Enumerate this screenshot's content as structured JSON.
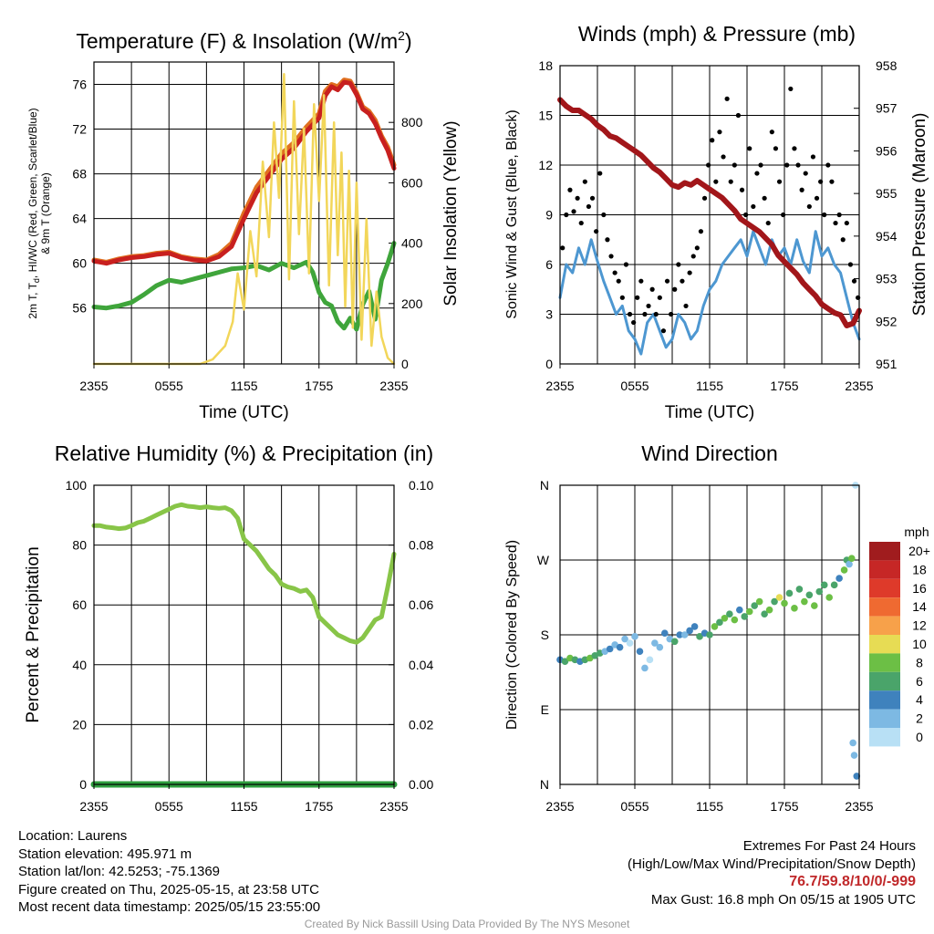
{
  "colors": {
    "temperature": "#c8201f",
    "dewpoint": "#3fa53b",
    "heat_index": "#e07020",
    "solar": "#f2d65a",
    "sonic_wind": "#4d97d1",
    "gust": "#000000",
    "pressure": "#a2161a",
    "rh": "#88c548",
    "precip": "#2f9e3f"
  },
  "footer": {
    "location": "Location: Laurens",
    "elevation": "Station elevation: 495.971 m",
    "latlon": "Station lat/lon: 42.5253; -75.1369",
    "created": "Figure created on Thu, 2025-05-15, at 23:58 UTC",
    "recent": "Most recent data timestamp: 2025/05/15 23:55:00",
    "extremes_title": "Extremes For Past 24 Hours",
    "extremes_sub": "(High/Low/Max Wind/Precipitation/Snow Depth)",
    "extremes_values": "76.7/59.8/10/0/-999",
    "max_gust": "Max Gust: 16.8 mph On 05/15 at 1905 UTC",
    "credit": "Created By Nick Bassill Using Data Provided By The NYS Mesonet"
  },
  "chart_data": [
    {
      "id": "temp",
      "type": "line",
      "title": "Temperature (F) & Insolation (W/m²)",
      "xlabel": "Time (UTC)",
      "ylabel": "2m T, Td, HI/WC (Red, Green, Scarlet/Blue) & 9m T (Orange)",
      "y2label": "Solar Insolation (Yellow)",
      "xticks": [
        "2355",
        "0555",
        "1155",
        "1755",
        "2355"
      ],
      "xlim": [
        0,
        24
      ],
      "ylim": [
        51,
        78
      ],
      "yticks": [
        56,
        60,
        64,
        68,
        72,
        76
      ],
      "y2lim": [
        0,
        1000
      ],
      "y2ticks": [
        0,
        200,
        400,
        600,
        800
      ],
      "grid": true,
      "series": [
        {
          "color_key": "dewpoint",
          "x": [
            0,
            1,
            2,
            3,
            4,
            5,
            6,
            7,
            8,
            9,
            10,
            11,
            12,
            13,
            14,
            15,
            16,
            17,
            17.5,
            18,
            18.5,
            19,
            19.5,
            20,
            20.5,
            21,
            21.5,
            22,
            22.5,
            23,
            23.5,
            24
          ],
          "y": [
            56.1,
            56,
            56.2,
            56.5,
            57.2,
            58,
            58.5,
            58.3,
            58.6,
            58.9,
            59.2,
            59.5,
            59.6,
            59.8,
            59.4,
            60,
            59.6,
            60.1,
            59.2,
            57.4,
            56.5,
            56.2,
            54.8,
            54.2,
            55.1,
            54.1,
            56.3,
            57.5,
            55,
            58.5,
            60,
            61.8
          ]
        },
        {
          "color_key": "heat_index",
          "x": [
            0,
            1,
            2,
            3,
            4,
            5,
            6,
            7,
            8,
            9,
            10,
            11,
            12,
            13,
            14,
            15,
            16,
            17,
            18,
            18.5,
            19,
            19.5,
            20,
            20.5,
            21,
            21.5,
            22,
            22.5,
            23,
            23.5,
            24
          ],
          "y": [
            60.3,
            60.1,
            60.4,
            60.6,
            60.7,
            60.9,
            61,
            60.6,
            60.4,
            60.3,
            60.8,
            61.8,
            64.5,
            66.8,
            68.3,
            69.8,
            70.8,
            72.2,
            73.4,
            75.4,
            76,
            75.8,
            76.4,
            76.3,
            75.3,
            74,
            73.6,
            72.8,
            71.4,
            70.4,
            68.8
          ]
        },
        {
          "color_key": "temperature",
          "x": [
            0,
            1,
            2,
            3,
            4,
            5,
            6,
            7,
            8,
            9,
            10,
            11,
            12,
            13,
            14,
            15,
            16,
            17,
            18,
            18.5,
            19,
            19.5,
            20,
            20.5,
            21,
            21.5,
            22,
            22.5,
            23,
            23.5,
            24
          ],
          "y": [
            60.2,
            60,
            60.3,
            60.5,
            60.6,
            60.8,
            60.9,
            60.5,
            60.3,
            60.2,
            60.6,
            61.5,
            64,
            66.3,
            67.8,
            69.3,
            70.3,
            71.8,
            73,
            75,
            75.8,
            75.5,
            76.2,
            76.1,
            75.1,
            73.8,
            73.4,
            72.5,
            71.2,
            70.1,
            68.5
          ]
        },
        {
          "color_key": "solar",
          "axis": "y2",
          "x": [
            0,
            8.5,
            9.5,
            10.5,
            11.1,
            11.5,
            12,
            12.5,
            13,
            13.5,
            14,
            14.4,
            14.8,
            15.2,
            15.6,
            16,
            16.4,
            16.8,
            17.2,
            17.6,
            18,
            18.4,
            18.8,
            19.2,
            19.5,
            19.8,
            20.1,
            20.4,
            20.7,
            21,
            21.4,
            21.8,
            22.2,
            22.6,
            23,
            23.5,
            24
          ],
          "y": [
            0,
            0,
            15,
            60,
            140,
            300,
            180,
            440,
            290,
            670,
            420,
            800,
            550,
            960,
            280,
            870,
            430,
            780,
            300,
            860,
            540,
            890,
            260,
            800,
            360,
            700,
            190,
            640,
            120,
            600,
            80,
            480,
            60,
            240,
            90,
            20,
            0
          ]
        }
      ]
    },
    {
      "id": "winds",
      "type": "line",
      "title": "Winds (mph) & Pressure (mb)",
      "xlabel": "Time (UTC)",
      "ylabel": "Sonic Wind & Gust (Blue, Black)",
      "y2label": "Station Pressure (Maroon)",
      "xticks": [
        "2355",
        "0555",
        "1155",
        "1755",
        "2355"
      ],
      "xlim": [
        0,
        24
      ],
      "ylim": [
        0,
        18
      ],
      "yticks": [
        0,
        3,
        6,
        9,
        12,
        15,
        18
      ],
      "y2lim": [
        951,
        958
      ],
      "y2ticks": [
        951,
        952,
        953,
        954,
        955,
        956,
        957,
        958
      ],
      "grid": true,
      "series": [
        {
          "color_key": "sonic_wind",
          "type": "line",
          "x": [
            0,
            0.5,
            1,
            1.5,
            2,
            2.5,
            3,
            3.5,
            4,
            4.5,
            5,
            5.5,
            6,
            6.5,
            7,
            7.5,
            8,
            8.5,
            9,
            9.5,
            10,
            10.5,
            11,
            11.5,
            12,
            12.5,
            13,
            13.5,
            14,
            14.5,
            15,
            15.5,
            16,
            16.5,
            17,
            17.5,
            18,
            18.5,
            19,
            19.5,
            20,
            20.5,
            21,
            21.5,
            22,
            22.5,
            23,
            23.5,
            24
          ],
          "y": [
            4,
            6,
            5.5,
            7,
            6,
            7.5,
            6.2,
            5,
            4,
            3,
            3.5,
            2,
            1.5,
            0.6,
            2.5,
            3,
            2,
            1,
            1.5,
            3,
            2.5,
            1.5,
            2,
            3.5,
            4.5,
            5,
            6,
            6.5,
            7,
            7.5,
            6.5,
            8,
            7,
            6,
            7.5,
            6.5,
            7,
            6,
            7.5,
            6.2,
            5.5,
            8,
            6.5,
            7,
            6,
            5.5,
            4,
            2.5,
            1.5
          ]
        },
        {
          "color_key": "gust",
          "type": "scatter",
          "x": [
            0.2,
            0.5,
            0.8,
            1.1,
            1.4,
            1.7,
            2,
            2.3,
            2.6,
            2.9,
            3.2,
            3.5,
            3.8,
            4.1,
            4.4,
            4.7,
            5,
            5.3,
            5.6,
            5.9,
            6.2,
            6.5,
            6.8,
            7.1,
            7.4,
            7.7,
            8,
            8.3,
            8.6,
            8.9,
            9.2,
            9.5,
            9.8,
            10.1,
            10.4,
            10.7,
            11,
            11.3,
            11.6,
            11.9,
            12.2,
            12.5,
            12.8,
            13.1,
            13.4,
            13.7,
            14,
            14.3,
            14.6,
            14.9,
            15.2,
            15.5,
            15.8,
            16.1,
            16.4,
            16.7,
            17,
            17.3,
            17.6,
            17.9,
            18.2,
            18.5,
            18.8,
            19.1,
            19.4,
            19.7,
            20,
            20.3,
            20.6,
            20.9,
            21.2,
            21.5,
            21.8,
            22.1,
            22.4,
            22.7,
            23,
            23.3,
            23.6,
            23.9
          ],
          "y": [
            7,
            9,
            10.5,
            9.2,
            10,
            8.5,
            11,
            9.5,
            10,
            8,
            11.5,
            9,
            7.5,
            6.5,
            5.5,
            5,
            4,
            6,
            3,
            2.5,
            4,
            5,
            3,
            3.5,
            4.5,
            3,
            4,
            2,
            5,
            3,
            4.5,
            6,
            5,
            3.5,
            5.5,
            6.5,
            7,
            8,
            10,
            12,
            13.5,
            11,
            14,
            12.5,
            16,
            11,
            12,
            15,
            10.5,
            9,
            13,
            9.5,
            11.5,
            12,
            10,
            8.5,
            14,
            13,
            11,
            9,
            12,
            16.6,
            13,
            12,
            10.5,
            11.5,
            9.5,
            12.5,
            10,
            11,
            9,
            12,
            11,
            8.5,
            9,
            7.5,
            8.5,
            6,
            5,
            4
          ]
        },
        {
          "color_key": "pressure",
          "type": "line",
          "axis": "y2",
          "x": [
            0,
            0.5,
            1,
            1.5,
            2,
            2.5,
            3,
            3.5,
            4,
            4.5,
            5,
            5.5,
            6,
            6.5,
            7,
            7.5,
            8,
            8.5,
            9,
            9.5,
            10,
            10.5,
            11,
            11.5,
            12,
            12.5,
            13,
            13.5,
            14,
            14.5,
            15,
            15.5,
            16,
            16.5,
            17,
            17.5,
            18,
            18.5,
            19,
            19.5,
            20,
            20.5,
            21,
            21.5,
            22,
            22.5,
            23,
            23.5,
            24
          ],
          "y": [
            957.2,
            957.05,
            956.95,
            956.95,
            956.85,
            956.75,
            956.6,
            956.5,
            956.35,
            956.3,
            956.2,
            956.1,
            956,
            955.9,
            955.75,
            955.6,
            955.5,
            955.35,
            955.2,
            955.15,
            955.25,
            955.2,
            955.3,
            955.2,
            955.1,
            955,
            954.9,
            954.75,
            954.6,
            954.4,
            954.3,
            954.2,
            954.1,
            953.95,
            953.8,
            953.55,
            953.4,
            953.25,
            953.1,
            952.9,
            952.75,
            952.6,
            952.4,
            952.3,
            952.2,
            952.15,
            951.9,
            951.95,
            952.25
          ]
        }
      ]
    },
    {
      "id": "rh",
      "type": "line",
      "title": "Relative Humidity (%) & Precipitation (in)",
      "ylabel": "Percent & Precipitation",
      "xticks": [
        "2355",
        "0555",
        "1155",
        "1755",
        "2355"
      ],
      "xlim": [
        0,
        24
      ],
      "ylim": [
        0,
        100
      ],
      "yticks": [
        0,
        20,
        40,
        60,
        80,
        100
      ],
      "y2lim": [
        0,
        0.1
      ],
      "y2ticks": [
        "0.00",
        "0.02",
        "0.04",
        "0.06",
        "0.08",
        "0.10"
      ],
      "grid": true,
      "series": [
        {
          "color_key": "rh",
          "x": [
            0,
            0.5,
            1,
            1.5,
            2,
            2.5,
            3,
            3.5,
            4,
            4.5,
            5,
            5.5,
            6,
            6.5,
            7,
            7.5,
            8,
            8.5,
            9,
            9.5,
            10,
            10.5,
            11,
            11.5,
            12,
            12.5,
            13,
            13.5,
            14,
            14.5,
            15,
            15.5,
            16,
            16.5,
            17,
            17.5,
            18,
            18.5,
            19,
            19.5,
            20,
            20.5,
            21,
            21.5,
            22,
            22.5,
            23,
            23.5,
            24
          ],
          "y": [
            86.5,
            86.5,
            86,
            85.8,
            85.5,
            85.7,
            86.5,
            87.5,
            88,
            89,
            90,
            91,
            92,
            93,
            93.5,
            93,
            92.8,
            92.5,
            92.8,
            92.5,
            92.3,
            92.5,
            91.5,
            89,
            82,
            80,
            78,
            75,
            72,
            70,
            67,
            66,
            65.5,
            64.5,
            65,
            62.5,
            56,
            54,
            52,
            50,
            49,
            48,
            47.5,
            49,
            52,
            55,
            56,
            66,
            77
          ]
        },
        {
          "color_key": "precip",
          "axis": "y2",
          "x": [
            0,
            24
          ],
          "y": [
            0,
            0
          ]
        }
      ]
    },
    {
      "id": "wdir",
      "type": "scatter",
      "title": "Wind Direction",
      "ylabel": "Direction (Colored By Speed)",
      "xticks": [
        "2355",
        "0555",
        "1155",
        "1755",
        "2355"
      ],
      "xlim": [
        0,
        24
      ],
      "ylim": [
        0,
        360
      ],
      "yticks": [
        "N",
        "E",
        "S",
        "W",
        "N"
      ],
      "grid": true,
      "colorbar": {
        "unit": "mph",
        "labels": [
          "20+",
          "18",
          "16",
          "14",
          "12",
          "10",
          "8",
          "6",
          "4",
          "2",
          "0"
        ],
        "colors": [
          "#a01c1e",
          "#c62726",
          "#de3a2a",
          "#ef6a31",
          "#f7a14a",
          "#e7dc54",
          "#6cbf45",
          "#4aa46a",
          "#3f82bd",
          "#7db9e3",
          "#b8e0f5"
        ]
      },
      "x": [
        0,
        0.4,
        0.8,
        1.2,
        1.6,
        2,
        2.4,
        2.8,
        3.2,
        3.6,
        4,
        4.4,
        4.8,
        5.2,
        5.6,
        6,
        6.4,
        6.8,
        7.2,
        7.6,
        8,
        8.4,
        8.8,
        9.2,
        9.6,
        10,
        10.4,
        10.8,
        11.2,
        11.6,
        12,
        12.4,
        12.8,
        13.2,
        13.6,
        14,
        14.4,
        14.8,
        15.2,
        15.6,
        16,
        16.4,
        16.8,
        17.2,
        17.6,
        18,
        18.4,
        18.8,
        19.2,
        19.6,
        20,
        20.4,
        20.8,
        21.2,
        21.6,
        22,
        22.4,
        22.8,
        23,
        23.2,
        23.4,
        23.6,
        23.8,
        23.7,
        23.5
      ],
      "y": [
        150,
        148,
        152,
        150,
        148,
        150,
        152,
        155,
        158,
        160,
        163,
        168,
        165,
        175,
        170,
        178,
        160,
        140,
        150,
        170,
        165,
        182,
        175,
        172,
        180,
        180,
        185,
        190,
        178,
        182,
        180,
        190,
        195,
        200,
        205,
        198,
        210,
        202,
        208,
        215,
        220,
        205,
        210,
        220,
        225,
        218,
        230,
        212,
        235,
        220,
        228,
        215,
        232,
        240,
        225,
        240,
        248,
        258,
        270,
        265,
        272,
        35,
        10,
        360,
        50
      ],
      "speed": [
        4,
        6,
        8,
        6,
        4,
        6,
        8,
        6,
        6,
        2,
        4,
        2,
        4,
        2,
        1,
        2,
        4,
        2,
        0,
        2,
        2,
        4,
        2,
        6,
        4,
        2,
        4,
        4,
        6,
        4,
        6,
        8,
        6,
        8,
        6,
        8,
        4,
        6,
        8,
        6,
        8,
        6,
        8,
        6,
        10,
        8,
        6,
        8,
        6,
        8,
        6,
        8,
        6,
        6,
        8,
        6,
        4,
        8,
        6,
        2,
        8,
        2,
        4,
        0,
        2
      ]
    }
  ]
}
